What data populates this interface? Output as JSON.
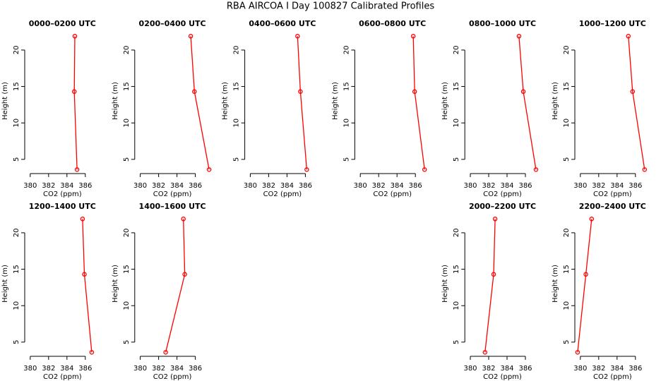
{
  "title": "RBA AIRCOA I  Day 100827  Calibrated Profiles",
  "chart_data": [
    {
      "type": "line",
      "title": "0000–0200 UTC",
      "xlabel": "CO2 (ppm)",
      "ylabel": "Height (m)",
      "color": "#ff0000",
      "x": [
        384.86,
        384.8,
        385.1
      ],
      "values": [
        21.9,
        14.3,
        3.6
      ],
      "xlim": [
        379.4,
        387.6
      ],
      "ylim": [
        3.25,
        22.8
      ],
      "xticks": [
        380,
        382,
        384,
        386
      ],
      "yticks": [
        5,
        10,
        15,
        20
      ]
    },
    {
      "type": "line",
      "title": "0200–0400 UTC",
      "xlabel": "CO2 (ppm)",
      "ylabel": "Height (m)",
      "color": "#ff0000",
      "x": [
        385.5,
        385.9,
        387.5
      ],
      "values": [
        21.9,
        14.3,
        3.6
      ],
      "xlim": [
        379.4,
        387.6
      ],
      "ylim": [
        3.25,
        22.8
      ],
      "xticks": [
        380,
        382,
        384,
        386
      ],
      "yticks": [
        5,
        10,
        15,
        20
      ]
    },
    {
      "type": "line",
      "title": "0400–0600 UTC",
      "xlabel": "CO2 (ppm)",
      "ylabel": "Height (m)",
      "color": "#ff0000",
      "x": [
        385.15,
        385.46,
        386.15
      ],
      "values": [
        21.9,
        14.3,
        3.6
      ],
      "xlim": [
        379.4,
        387.6
      ],
      "ylim": [
        3.25,
        22.8
      ],
      "xticks": [
        380,
        382,
        384,
        386
      ],
      "yticks": [
        5,
        10,
        15,
        20
      ]
    },
    {
      "type": "line",
      "title": "0600–0800 UTC",
      "xlabel": "CO2 (ppm)",
      "ylabel": "Height (m)",
      "color": "#ff0000",
      "x": [
        385.77,
        385.92,
        387.0
      ],
      "values": [
        21.9,
        14.3,
        3.6
      ],
      "xlim": [
        379.4,
        387.6
      ],
      "ylim": [
        3.25,
        22.8
      ],
      "xticks": [
        380,
        382,
        384,
        386
      ],
      "yticks": [
        5,
        10,
        15,
        20
      ]
    },
    {
      "type": "line",
      "title": "0800–1000 UTC",
      "xlabel": "CO2 (ppm)",
      "ylabel": "Height (m)",
      "color": "#ff0000",
      "x": [
        385.3,
        385.77,
        387.15
      ],
      "values": [
        21.9,
        14.3,
        3.6
      ],
      "xlim": [
        379.4,
        387.6
      ],
      "ylim": [
        3.25,
        22.8
      ],
      "xticks": [
        380,
        382,
        384,
        386
      ],
      "yticks": [
        5,
        10,
        15,
        20
      ]
    },
    {
      "type": "line",
      "title": "1000–1200 UTC",
      "xlabel": "CO2 (ppm)",
      "ylabel": "Height (m)",
      "color": "#ff0000",
      "x": [
        385.23,
        385.69,
        387.0
      ],
      "values": [
        21.9,
        14.3,
        3.6
      ],
      "xlim": [
        379.4,
        387.6
      ],
      "ylim": [
        3.25,
        22.8
      ],
      "xticks": [
        380,
        382,
        384,
        386
      ],
      "yticks": [
        5,
        10,
        15,
        20
      ]
    },
    {
      "type": "line",
      "title": "1200–1400 UTC",
      "xlabel": "CO2 (ppm)",
      "ylabel": "Height (m)",
      "color": "#ff0000",
      "x": [
        385.7,
        385.9,
        386.7
      ],
      "values": [
        21.9,
        14.3,
        3.6
      ],
      "xlim": [
        379.4,
        387.6
      ],
      "ylim": [
        3.25,
        22.8
      ],
      "xticks": [
        380,
        382,
        384,
        386
      ],
      "yticks": [
        5,
        10,
        15,
        20
      ]
    },
    {
      "type": "line",
      "title": "1400–1600 UTC",
      "xlabel": "CO2 (ppm)",
      "ylabel": "Height (m)",
      "color": "#ff0000",
      "x": [
        384.7,
        384.85,
        382.77
      ],
      "values": [
        21.9,
        14.3,
        3.6
      ],
      "xlim": [
        379.4,
        387.6
      ],
      "ylim": [
        3.25,
        22.8
      ],
      "xticks": [
        380,
        382,
        384,
        386
      ],
      "yticks": [
        5,
        10,
        15,
        20
      ]
    },
    {
      "type": "line",
      "title": "2000–2200 UTC",
      "xlabel": "CO2 (ppm)",
      "ylabel": "Height (m)",
      "color": "#ff0000",
      "x": [
        382.7,
        382.54,
        381.6
      ],
      "values": [
        21.9,
        14.3,
        3.6
      ],
      "xlim": [
        379.4,
        387.6
      ],
      "ylim": [
        3.25,
        22.8
      ],
      "xticks": [
        380,
        382,
        384,
        386
      ],
      "yticks": [
        5,
        10,
        15,
        20
      ]
    },
    {
      "type": "line",
      "title": "2200–2400 UTC",
      "xlabel": "CO2 (ppm)",
      "ylabel": "Height (m)",
      "color": "#ff0000",
      "x": [
        381.23,
        380.6,
        379.7
      ],
      "values": [
        21.9,
        14.3,
        3.6
      ],
      "xlim": [
        379.4,
        387.6
      ],
      "ylim": [
        3.25,
        22.8
      ],
      "xticks": [
        380,
        382,
        384,
        386
      ],
      "yticks": [
        5,
        10,
        15,
        20
      ]
    }
  ]
}
